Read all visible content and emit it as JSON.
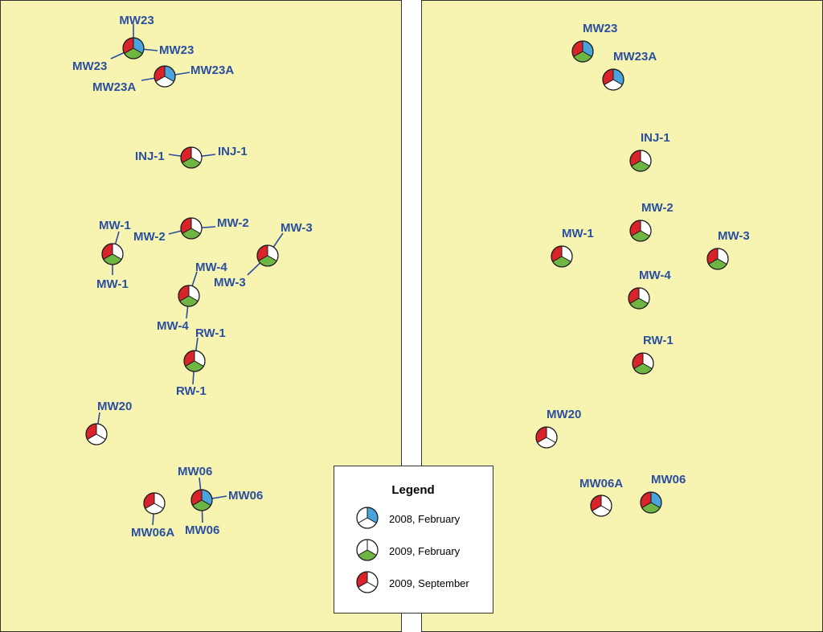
{
  "colors": {
    "panel_fill": "#f7f3b1",
    "border": "#333333",
    "label": "#2a4fa0",
    "leader": "#2a4fa0",
    "red": "#d8232a",
    "green": "#6fb544",
    "blue": "#4aa3dc",
    "white": "#ffffff"
  },
  "legend": {
    "title": "Legend",
    "entries": [
      {
        "label": "2008, February",
        "symbol": [
          "w",
          "b",
          "w"
        ]
      },
      {
        "label": "2009, February",
        "symbol": [
          "w",
          "w",
          "g"
        ]
      },
      {
        "label": "2009, September",
        "symbol": [
          "r",
          "w",
          "w"
        ]
      }
    ]
  },
  "left_map": {
    "labels": [
      {
        "id": "ll1",
        "text": "MW23"
      },
      {
        "id": "ll2",
        "text": "MW23"
      },
      {
        "id": "ll3",
        "text": "MW23"
      },
      {
        "id": "ll4",
        "text": "MW23A"
      },
      {
        "id": "ll5",
        "text": "MW23A"
      },
      {
        "id": "ll6",
        "text": "INJ-1"
      },
      {
        "id": "ll7",
        "text": "INJ-1"
      },
      {
        "id": "ll8",
        "text": "MW-2"
      },
      {
        "id": "ll9",
        "text": "MW-2"
      },
      {
        "id": "ll10",
        "text": "MW-1"
      },
      {
        "id": "ll11",
        "text": "MW-1"
      },
      {
        "id": "ll12",
        "text": "MW-3"
      },
      {
        "id": "ll13",
        "text": "MW-3"
      },
      {
        "id": "ll14",
        "text": "MW-4"
      },
      {
        "id": "ll15",
        "text": "MW-4"
      },
      {
        "id": "ll16",
        "text": "RW-1"
      },
      {
        "id": "ll17",
        "text": "RW-1"
      },
      {
        "id": "ll18",
        "text": "MW20"
      },
      {
        "id": "ll19",
        "text": "MW06"
      },
      {
        "id": "ll20",
        "text": "MW06"
      },
      {
        "id": "ll21",
        "text": "MW06"
      },
      {
        "id": "ll22",
        "text": "MW06A"
      }
    ]
  },
  "right_map": {
    "labels": [
      {
        "id": "rl1",
        "text": "MW23"
      },
      {
        "id": "rl2",
        "text": "MW23A"
      },
      {
        "id": "rl3",
        "text": "INJ-1"
      },
      {
        "id": "rl4",
        "text": "MW-2"
      },
      {
        "id": "rl5",
        "text": "MW-1"
      },
      {
        "id": "rl6",
        "text": "MW-3"
      },
      {
        "id": "rl7",
        "text": "MW-4"
      },
      {
        "id": "rl8",
        "text": "RW-1"
      },
      {
        "id": "rl9",
        "text": "MW20"
      },
      {
        "id": "rl10",
        "text": "MW06A"
      },
      {
        "id": "rl11",
        "text": "MW06"
      }
    ]
  },
  "wells": [
    {
      "map": "left",
      "name": "MW23",
      "sectors": [
        "r",
        "b",
        "g"
      ]
    },
    {
      "map": "left",
      "name": "MW23A",
      "sectors": [
        "r",
        "b",
        "w"
      ]
    },
    {
      "map": "left",
      "name": "INJ-1",
      "sectors": [
        "r",
        "w",
        "g"
      ]
    },
    {
      "map": "left",
      "name": "MW-2",
      "sectors": [
        "r",
        "w",
        "g"
      ]
    },
    {
      "map": "left",
      "name": "MW-1",
      "sectors": [
        "r",
        "w",
        "g"
      ]
    },
    {
      "map": "left",
      "name": "MW-3",
      "sectors": [
        "r",
        "w",
        "g"
      ]
    },
    {
      "map": "left",
      "name": "MW-4",
      "sectors": [
        "r",
        "w",
        "g"
      ]
    },
    {
      "map": "left",
      "name": "RW-1",
      "sectors": [
        "r",
        "w",
        "g"
      ]
    },
    {
      "map": "left",
      "name": "MW20",
      "sectors": [
        "r",
        "w",
        "w"
      ]
    },
    {
      "map": "left",
      "name": "MW06",
      "sectors": [
        "r",
        "b",
        "g"
      ]
    },
    {
      "map": "left",
      "name": "MW06A",
      "sectors": [
        "r",
        "w",
        "w"
      ]
    },
    {
      "map": "right",
      "name": "MW23",
      "sectors": [
        "r",
        "b",
        "g"
      ]
    },
    {
      "map": "right",
      "name": "MW23A",
      "sectors": [
        "r",
        "b",
        "w"
      ]
    },
    {
      "map": "right",
      "name": "INJ-1",
      "sectors": [
        "r",
        "w",
        "g"
      ]
    },
    {
      "map": "right",
      "name": "MW-2",
      "sectors": [
        "r",
        "w",
        "g"
      ]
    },
    {
      "map": "right",
      "name": "MW-1",
      "sectors": [
        "r",
        "w",
        "g"
      ]
    },
    {
      "map": "right",
      "name": "MW-3",
      "sectors": [
        "r",
        "w",
        "g"
      ]
    },
    {
      "map": "right",
      "name": "MW-4",
      "sectors": [
        "r",
        "w",
        "g"
      ]
    },
    {
      "map": "right",
      "name": "RW-1",
      "sectors": [
        "r",
        "w",
        "g"
      ]
    },
    {
      "map": "right",
      "name": "MW20",
      "sectors": [
        "r",
        "w",
        "w"
      ]
    },
    {
      "map": "right",
      "name": "MW06A",
      "sectors": [
        "r",
        "w",
        "w"
      ]
    },
    {
      "map": "right",
      "name": "MW06",
      "sectors": [
        "r",
        "b",
        "g"
      ]
    }
  ]
}
